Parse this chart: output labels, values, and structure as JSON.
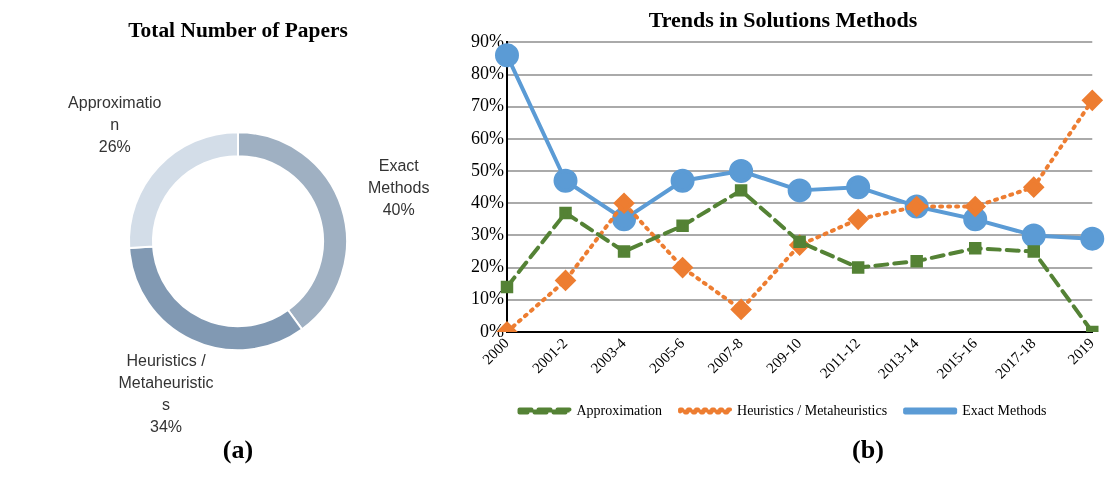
{
  "chart_data": [
    {
      "type": "donut",
      "title": "Total Number of Papers",
      "categories": [
        "Exact Methods",
        "Heuristics / Metaheuristics",
        "Approximation"
      ],
      "values": [
        40,
        34,
        26
      ],
      "colors": [
        "#9fb0c2",
        "#8199b3",
        "#d3dde8"
      ],
      "value_labels": [
        "40%",
        "34%",
        "26%"
      ],
      "legend": false,
      "annotations": [
        "(a)"
      ]
    },
    {
      "type": "line",
      "title": "Trends in Solutions Methods",
      "categories": [
        "2000",
        "2001-2",
        "2003-4",
        "2005-6",
        "2007-8",
        "209-10",
        "2011-12",
        "2013-14",
        "2015-16",
        "2017-18",
        "2019"
      ],
      "series": [
        {
          "name": "Exact Methods",
          "color": "#5b9bd5",
          "marker": "circle",
          "line_style": "solid",
          "values": [
            86,
            47,
            35,
            47,
            50,
            44,
            45,
            39,
            35,
            30,
            29
          ]
        },
        {
          "name": "Heuristics / Metaheuristics",
          "color": "#ed7d31",
          "marker": "diamond",
          "line_style": "dotted",
          "values": [
            0,
            16,
            40,
            20,
            7,
            27,
            35,
            39,
            39,
            45,
            72
          ]
        },
        {
          "name": "Approximation",
          "color": "#548235",
          "marker": "square",
          "line_style": "dashed",
          "values": [
            14,
            37,
            25,
            33,
            44,
            28,
            20,
            22,
            26,
            25,
            0
          ]
        }
      ],
      "ylim": [
        0,
        90
      ],
      "yticks": [
        {
          "value": 0,
          "label": "0%"
        },
        {
          "value": 10,
          "label": "10%"
        },
        {
          "value": 20,
          "label": "20%"
        },
        {
          "value": 30,
          "label": "30%"
        },
        {
          "value": 40,
          "label": "40%"
        },
        {
          "value": 50,
          "label": "50%"
        },
        {
          "value": 60,
          "label": "60%"
        },
        {
          "value": 70,
          "label": "70%"
        },
        {
          "value": 80,
          "label": "80%"
        },
        {
          "value": 90,
          "label": "90%"
        }
      ],
      "grid": "y",
      "legend": "bottom",
      "annotations": [
        "(b)"
      ]
    }
  ]
}
